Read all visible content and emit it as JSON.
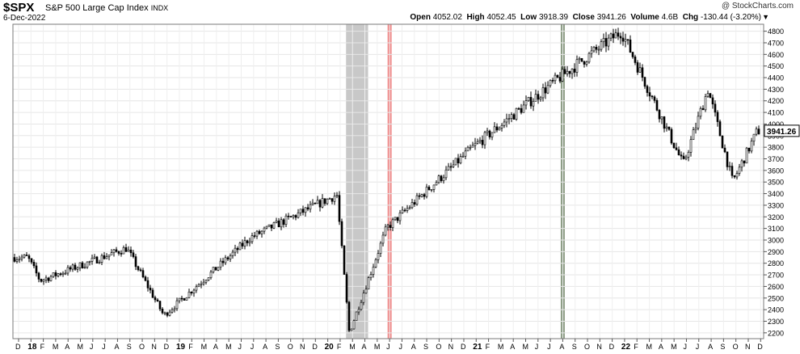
{
  "header": {
    "symbol": "$SPX",
    "name": "S&P 500 Large Cap Index",
    "exchange": "INDX",
    "date": "6-Dec-2022",
    "brand": "@ StockCharts.com",
    "open_label": "Open",
    "open": "4052.02",
    "high_label": "High",
    "high": "4052.45",
    "low_label": "Low",
    "low": "3918.39",
    "close_label": "Close",
    "close": "3941.26",
    "volume_label": "Volume",
    "volume": "4.6B",
    "chg_label": "Chg",
    "chg": "-130.44 (-3.20%)",
    "menu_icon": "triangle-down-icon"
  },
  "chart_data": {
    "type": "candlestick",
    "ylim": [
      2150,
      4860
    ],
    "y_ticks": [
      2200,
      2300,
      2400,
      2500,
      2600,
      2700,
      2800,
      2900,
      3000,
      3100,
      3200,
      3300,
      3400,
      3500,
      3600,
      3700,
      3800,
      3900,
      4000,
      4100,
      4200,
      4300,
      4400,
      4500,
      4600,
      4700,
      4800
    ],
    "last_price_label": "3941.26",
    "x_labels": [
      "D",
      "18",
      "F",
      "M",
      "A",
      "M",
      "J",
      "J",
      "A",
      "S",
      "O",
      "N",
      "D",
      "19",
      "F",
      "M",
      "A",
      "M",
      "J",
      "J",
      "A",
      "S",
      "O",
      "N",
      "D",
      "20",
      "F",
      "M",
      "A",
      "M",
      "J",
      "J",
      "A",
      "S",
      "O",
      "N",
      "D",
      "21",
      "F",
      "M",
      "A",
      "M",
      "J",
      "J",
      "A",
      "S",
      "O",
      "N",
      "D",
      "22",
      "F",
      "M",
      "A",
      "M",
      "J",
      "J",
      "A",
      "S",
      "O",
      "N",
      "D"
    ],
    "year_labels": [
      "18",
      "19",
      "20",
      "21",
      "22"
    ],
    "period": [
      "Dec 2017",
      "Dec 2022"
    ],
    "key_levels": [
      {
        "date": "2018-01",
        "price": 2850
      },
      {
        "date": "2018-02",
        "price": 2650
      },
      {
        "date": "2018-09",
        "price": 2930
      },
      {
        "date": "2018-12",
        "price": 2350
      },
      {
        "date": "2019-07",
        "price": 3020
      },
      {
        "date": "2020-02",
        "price": 3390
      },
      {
        "date": "2020-03",
        "price": 2200
      },
      {
        "date": "2020-06",
        "price": 3100
      },
      {
        "date": "2021-01",
        "price": 3800
      },
      {
        "date": "2021-08",
        "price": 4400
      },
      {
        "date": "2022-01",
        "price": 4800
      },
      {
        "date": "2022-06",
        "price": 3650
      },
      {
        "date": "2022-08",
        "price": 4300
      },
      {
        "date": "2022-10",
        "price": 3500
      },
      {
        "date": "2022-12",
        "price": 3941
      }
    ],
    "highlights": [
      {
        "start": "2020-03",
        "end": "2020-04",
        "color": "#c8c8c8"
      },
      {
        "date": "2020-06",
        "color": "#f08c8c"
      },
      {
        "date": "2021-08",
        "color": "#8c9c84"
      }
    ],
    "grid": true
  }
}
